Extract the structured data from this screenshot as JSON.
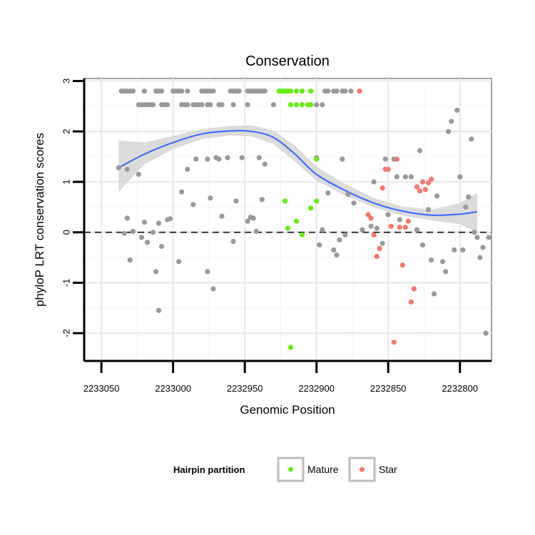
{
  "chart_data": {
    "type": "scatter",
    "title": "Conservation",
    "xlabel": "Genomic Position",
    "ylabel": "phyloP LRT conservation scores",
    "x_reversed": true,
    "xlim": [
      2233062,
      2232778
    ],
    "ylim": [
      -2.55,
      3.05
    ],
    "x_ticks": [
      2233050,
      2233000,
      2232950,
      2232900,
      2232850,
      2232800
    ],
    "x_tick_labels": [
      "2233050",
      "2233000",
      "2232950",
      "2232900",
      "2232850",
      "2232800"
    ],
    "y_ticks": [
      -2,
      -1,
      0,
      1,
      2,
      3
    ],
    "y_tick_labels": [
      "-2",
      "-1",
      "0",
      "1",
      "2",
      "3"
    ],
    "reference_line": {
      "y": 0,
      "style": "dashed"
    },
    "grid": true,
    "legend": {
      "title": "Hairpin partition",
      "position": "bottom",
      "entries": [
        {
          "label": "Mature",
          "color": "#66EE11"
        },
        {
          "label": "Star",
          "color": "#F8766D"
        }
      ]
    },
    "colors": {
      "other": "#999999",
      "mature": "#66EE11",
      "star": "#F8766D",
      "smooth": "#3366FF",
      "ribbon": "#D9D9D9"
    },
    "smooth": {
      "x": [
        2233038,
        2233020,
        2233000,
        2232980,
        2232960,
        2232945,
        2232930,
        2232915,
        2232900,
        2232880,
        2232860,
        2232840,
        2232820,
        2232800,
        2232788
      ],
      "y": [
        1.28,
        1.55,
        1.78,
        1.95,
        2.01,
        2.0,
        1.88,
        1.55,
        1.15,
        0.83,
        0.58,
        0.42,
        0.34,
        0.36,
        0.41
      ],
      "lower": [
        0.8,
        1.35,
        1.65,
        1.85,
        1.92,
        1.9,
        1.75,
        1.4,
        1.02,
        0.73,
        0.49,
        0.33,
        0.24,
        0.16,
        0.0
      ],
      "upper": [
        1.82,
        1.78,
        1.91,
        2.05,
        2.11,
        2.12,
        2.02,
        1.72,
        1.3,
        0.96,
        0.68,
        0.51,
        0.45,
        0.58,
        0.78
      ]
    },
    "series": [
      {
        "name": "Other",
        "points": [
          [
            2233036,
            2.8
          ],
          [
            2233034,
            2.8
          ],
          [
            2233032,
            2.8
          ],
          [
            2233030,
            2.8
          ],
          [
            2233028,
            2.8
          ],
          [
            2233020,
            2.8
          ],
          [
            2233012,
            2.8
          ],
          [
            2233010,
            2.8
          ],
          [
            2233008,
            2.8
          ],
          [
            2233000,
            2.8
          ],
          [
            2232998,
            2.8
          ],
          [
            2232996,
            2.8
          ],
          [
            2232994,
            2.8
          ],
          [
            2232990,
            2.8
          ],
          [
            2232980,
            2.8
          ],
          [
            2232978,
            2.8
          ],
          [
            2232976,
            2.8
          ],
          [
            2232974,
            2.8
          ],
          [
            2232972,
            2.8
          ],
          [
            2232960,
            2.8
          ],
          [
            2232958,
            2.8
          ],
          [
            2232956,
            2.8
          ],
          [
            2232954,
            2.8
          ],
          [
            2232948,
            2.8
          ],
          [
            2232946,
            2.8
          ],
          [
            2232944,
            2.8
          ],
          [
            2232942,
            2.8
          ],
          [
            2232940,
            2.8
          ],
          [
            2232938,
            2.8
          ],
          [
            2232936,
            2.8
          ],
          [
            2232894,
            2.8
          ],
          [
            2232892,
            2.8
          ],
          [
            2232888,
            2.8
          ],
          [
            2232886,
            2.8
          ],
          [
            2232882,
            2.8
          ],
          [
            2232880,
            2.8
          ],
          [
            2232876,
            2.8
          ],
          [
            2233024,
            2.53
          ],
          [
            2233022,
            2.53
          ],
          [
            2233020,
            2.53
          ],
          [
            2233018,
            2.53
          ],
          [
            2233016,
            2.53
          ],
          [
            2233014,
            2.53
          ],
          [
            2233008,
            2.53
          ],
          [
            2233006,
            2.53
          ],
          [
            2233004,
            2.53
          ],
          [
            2232994,
            2.53
          ],
          [
            2232992,
            2.53
          ],
          [
            2232990,
            2.53
          ],
          [
            2232986,
            2.53
          ],
          [
            2232984,
            2.53
          ],
          [
            2232982,
            2.53
          ],
          [
            2232980,
            2.53
          ],
          [
            2232976,
            2.53
          ],
          [
            2232974,
            2.53
          ],
          [
            2232968,
            2.53
          ],
          [
            2232966,
            2.53
          ],
          [
            2232958,
            2.53
          ],
          [
            2232948,
            2.53
          ],
          [
            2232930,
            2.53
          ],
          [
            2232900,
            2.53
          ],
          [
            2232896,
            2.53
          ],
          [
            2233038,
            1.28
          ],
          [
            2233032,
            1.25
          ],
          [
            2233028,
            0.02
          ],
          [
            2233024,
            1.15
          ],
          [
            2233020,
            0.2
          ],
          [
            2233018,
            -0.2
          ],
          [
            2233014,
            0.0
          ],
          [
            2233010,
            0.18
          ],
          [
            2233008,
            -0.28
          ],
          [
            2233004,
            0.25
          ],
          [
            2233002,
            0.27
          ],
          [
            2232996,
            -0.58
          ],
          [
            2232994,
            0.8
          ],
          [
            2232990,
            1.25
          ],
          [
            2232986,
            0.55
          ],
          [
            2232984,
            1.45
          ],
          [
            2232976,
            1.45
          ],
          [
            2232974,
            0.68
          ],
          [
            2232972,
            -1.12
          ],
          [
            2232970,
            1.48
          ],
          [
            2232966,
            0.32
          ],
          [
            2232962,
            1.48
          ],
          [
            2232958,
            -0.18
          ],
          [
            2232956,
            0.62
          ],
          [
            2232952,
            1.48
          ],
          [
            2232948,
            0.22
          ],
          [
            2232944,
            0.28
          ],
          [
            2232942,
            0.02
          ],
          [
            2232940,
            1.48
          ],
          [
            2232938,
            0.65
          ],
          [
            2232936,
            1.35
          ],
          [
            2233032,
            0.28
          ],
          [
            2233034,
            -0.02
          ],
          [
            2233022,
            -0.1
          ],
          [
            2233030,
            -0.55
          ],
          [
            2233012,
            -0.78
          ],
          [
            2233010,
            -1.55
          ],
          [
            2232976,
            -0.78
          ],
          [
            2232968,
            1.45
          ],
          [
            2232946,
            0.3
          ],
          [
            2232900,
            1.48
          ],
          [
            2232898,
            -0.25
          ],
          [
            2232896,
            0.05
          ],
          [
            2232892,
            0.78
          ],
          [
            2232888,
            -0.35
          ],
          [
            2232886,
            -0.45
          ],
          [
            2232884,
            -0.15
          ],
          [
            2232882,
            1.45
          ],
          [
            2232880,
            -0.05
          ],
          [
            2232878,
            0.75
          ],
          [
            2232874,
            0.58
          ],
          [
            2232868,
            0.05
          ],
          [
            2232862,
            0.12
          ],
          [
            2232860,
            1.0
          ],
          [
            2232858,
            0.08
          ],
          [
            2232854,
            -0.22
          ],
          [
            2232852,
            1.45
          ],
          [
            2232850,
            0.35
          ],
          [
            2232846,
            1.45
          ],
          [
            2232844,
            1.1
          ],
          [
            2232842,
            0.25
          ],
          [
            2232838,
            1.1
          ],
          [
            2232834,
            1.1
          ],
          [
            2232830,
            0.05
          ],
          [
            2232828,
            1.62
          ],
          [
            2232826,
            -0.25
          ],
          [
            2232822,
            0.45
          ],
          [
            2232820,
            -0.55
          ],
          [
            2232818,
            -1.22
          ],
          [
            2232816,
            0.72
          ],
          [
            2232812,
            -0.58
          ],
          [
            2232810,
            -0.78
          ],
          [
            2232808,
            2.0
          ],
          [
            2232806,
            2.2
          ],
          [
            2232804,
            -0.35
          ],
          [
            2232802,
            2.42
          ],
          [
            2232800,
            1.1
          ],
          [
            2232798,
            -0.35
          ],
          [
            2232796,
            0.5
          ],
          [
            2232794,
            0.7
          ],
          [
            2232792,
            1.85
          ],
          [
            2232790,
            0.0
          ],
          [
            2232788,
            -0.1
          ],
          [
            2232786,
            -0.5
          ],
          [
            2232784,
            -0.3
          ],
          [
            2232782,
            -2.0
          ],
          [
            2232780,
            -0.1
          ]
        ]
      },
      {
        "name": "Mature",
        "points": [
          [
            2232926,
            2.8
          ],
          [
            2232924,
            2.8
          ],
          [
            2232922,
            2.8
          ],
          [
            2232920,
            2.8
          ],
          [
            2232918,
            2.8
          ],
          [
            2232914,
            2.8
          ],
          [
            2232910,
            2.8
          ],
          [
            2232904,
            2.8
          ],
          [
            2232918,
            2.53
          ],
          [
            2232914,
            2.53
          ],
          [
            2232910,
            2.53
          ],
          [
            2232906,
            2.53
          ],
          [
            2232904,
            2.53
          ],
          [
            2232922,
            0.62
          ],
          [
            2232920,
            0.08
          ],
          [
            2232914,
            0.22
          ],
          [
            2232910,
            -0.05
          ],
          [
            2232904,
            0.48
          ],
          [
            2232900,
            1.45
          ],
          [
            2232900,
            0.62
          ],
          [
            2232918,
            -2.28
          ]
        ]
      },
      {
        "name": "Star",
        "points": [
          [
            2232870,
            2.8
          ],
          [
            2232864,
            0.35
          ],
          [
            2232862,
            0.28
          ],
          [
            2232860,
            -0.05
          ],
          [
            2232858,
            -0.48
          ],
          [
            2232856,
            -0.32
          ],
          [
            2232854,
            0.88
          ],
          [
            2232852,
            1.25
          ],
          [
            2232850,
            1.25
          ],
          [
            2232848,
            0.12
          ],
          [
            2232846,
            -2.18
          ],
          [
            2232844,
            1.45
          ],
          [
            2232842,
            0.1
          ],
          [
            2232840,
            -0.65
          ],
          [
            2232838,
            0.1
          ],
          [
            2232836,
            0.22
          ],
          [
            2232834,
            -1.38
          ],
          [
            2232832,
            -1.12
          ],
          [
            2232830,
            0.9
          ],
          [
            2232828,
            0.82
          ],
          [
            2232826,
            1.0
          ],
          [
            2232824,
            0.85
          ],
          [
            2232822,
            0.98
          ],
          [
            2232820,
            1.05
          ]
        ]
      }
    ]
  }
}
